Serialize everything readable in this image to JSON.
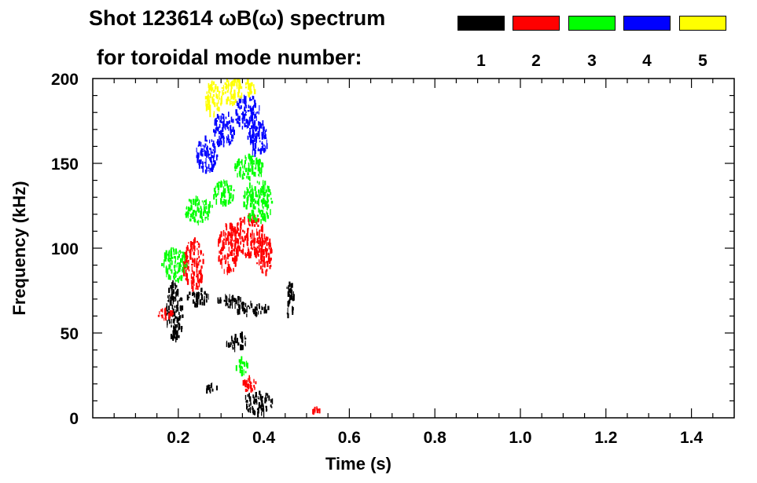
{
  "header": {
    "line1": "Shot 123614 ωB(ω) spectrum",
    "line2": "for toroidal mode number:"
  },
  "legend": [
    {
      "label": "1",
      "color": "#000000"
    },
    {
      "label": "2",
      "color": "#ff0000"
    },
    {
      "label": "3",
      "color": "#00ff00"
    },
    {
      "label": "4",
      "color": "#0000ff"
    },
    {
      "label": "5",
      "color": "#ffff00"
    }
  ],
  "chart_data": {
    "type": "heatmap",
    "title": "Shot 123614 ωB(ω) spectrum for toroidal mode number:",
    "xlabel": "Time (s)",
    "ylabel": "Frequency (kHz)",
    "xlim": [
      0.0,
      1.5
    ],
    "ylim": [
      0,
      200
    ],
    "xticks": [
      0.2,
      0.4,
      0.6,
      0.8,
      1.0,
      1.2,
      1.4
    ],
    "xtick_labels": [
      "0.2",
      "0.4",
      "0.6",
      "0.8",
      "1.0",
      "1.2",
      "1.4"
    ],
    "yticks": [
      0,
      50,
      100,
      150,
      200
    ],
    "ytick_labels": [
      "0",
      "50",
      "100",
      "150",
      "200"
    ],
    "legend_placement": "top-right",
    "series": [
      {
        "name": "1",
        "color": "#000000",
        "blobs": [
          {
            "t": [
              0.17,
              0.21
            ],
            "f": [
              45,
              80
            ]
          },
          {
            "t": [
              0.22,
              0.27
            ],
            "f": [
              66,
              76
            ]
          },
          {
            "t": [
              0.29,
              0.35
            ],
            "f": [
              65,
              72
            ]
          },
          {
            "t": [
              0.33,
              0.41
            ],
            "f": [
              60,
              68
            ]
          },
          {
            "t": [
              0.35,
              0.42
            ],
            "f": [
              2,
              15
            ]
          },
          {
            "t": [
              0.45,
              0.47
            ],
            "f": [
              58,
              80
            ]
          },
          {
            "t": [
              0.26,
              0.29
            ],
            "f": [
              15,
              20
            ]
          },
          {
            "t": [
              0.31,
              0.36
            ],
            "f": [
              40,
              50
            ]
          }
        ]
      },
      {
        "name": "2",
        "color": "#ff0000",
        "blobs": [
          {
            "t": [
              0.15,
              0.19
            ],
            "f": [
              58,
              64
            ]
          },
          {
            "t": [
              0.21,
              0.26
            ],
            "f": [
              75,
              105
            ]
          },
          {
            "t": [
              0.29,
              0.34
            ],
            "f": [
              85,
              115
            ]
          },
          {
            "t": [
              0.33,
              0.4
            ],
            "f": [
              95,
              120
            ]
          },
          {
            "t": [
              0.38,
              0.42
            ],
            "f": [
              85,
              108
            ]
          },
          {
            "t": [
              0.35,
              0.38
            ],
            "f": [
              15,
              25
            ]
          },
          {
            "t": [
              0.51,
              0.53
            ],
            "f": [
              3,
              6
            ]
          }
        ]
      },
      {
        "name": "3",
        "color": "#00ff00",
        "blobs": [
          {
            "t": [
              0.16,
              0.22
            ],
            "f": [
              80,
              100
            ]
          },
          {
            "t": [
              0.21,
              0.28
            ],
            "f": [
              115,
              130
            ]
          },
          {
            "t": [
              0.28,
              0.33
            ],
            "f": [
              125,
              140
            ]
          },
          {
            "t": [
              0.33,
              0.4
            ],
            "f": [
              140,
              155
            ]
          },
          {
            "t": [
              0.35,
              0.42
            ],
            "f": [
              115,
              140
            ]
          },
          {
            "t": [
              0.33,
              0.36
            ],
            "f": [
              25,
              35
            ]
          }
        ]
      },
      {
        "name": "4",
        "color": "#0000ff",
        "blobs": [
          {
            "t": [
              0.24,
              0.29
            ],
            "f": [
              145,
              165
            ]
          },
          {
            "t": [
              0.28,
              0.33
            ],
            "f": [
              160,
              180
            ]
          },
          {
            "t": [
              0.33,
              0.39
            ],
            "f": [
              170,
              190
            ]
          },
          {
            "t": [
              0.36,
              0.41
            ],
            "f": [
              155,
              175
            ]
          }
        ]
      },
      {
        "name": "5",
        "color": "#ffff00",
        "blobs": [
          {
            "t": [
              0.26,
              0.3
            ],
            "f": [
              178,
              198
            ]
          },
          {
            "t": [
              0.3,
              0.35
            ],
            "f": [
              185,
              200
            ]
          },
          {
            "t": [
              0.35,
              0.38
            ],
            "f": [
              190,
              200
            ]
          }
        ]
      }
    ]
  }
}
